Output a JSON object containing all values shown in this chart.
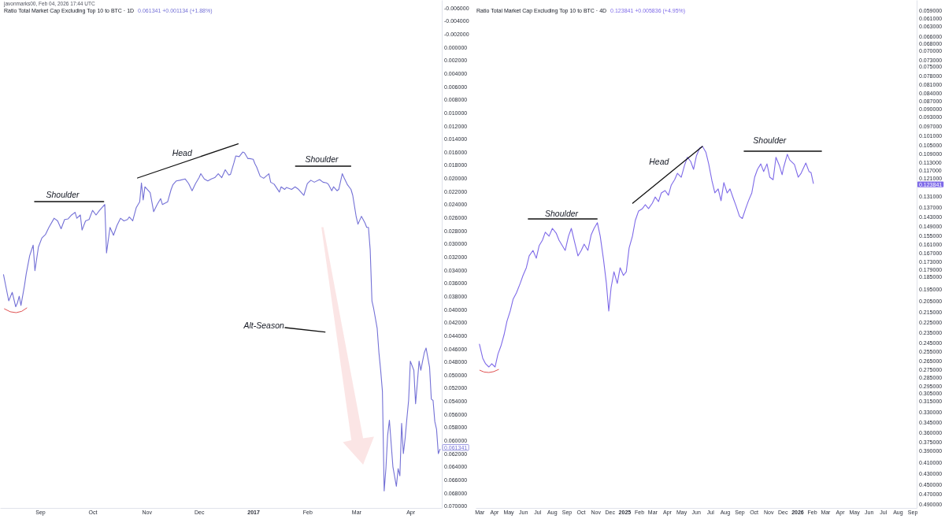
{
  "chart_data": [
    {
      "type": "line",
      "title": "Ratio Total Market Cap Excluding Top 10 to BTC · 1D",
      "subtitle": "0.061341 +0.001134 (+1.88%)",
      "annotations": [
        "javonmarks00, Feb 04, 2026 17:44 UTC",
        "Shoulder",
        "Head",
        "Shoulder",
        "Alt-Season",
        "0.061341"
      ],
      "x": [
        "2016-08-11",
        "2016-08-14",
        "2016-08-16",
        "2016-08-18",
        "2016-08-19",
        "2016-08-20",
        "2016-08-21",
        "2016-08-23",
        "2016-08-24",
        "2016-08-26",
        "2016-08-28",
        "2016-08-29",
        "2016-08-31",
        "2016-09-02",
        "2016-09-04",
        "2016-09-06",
        "2016-09-09",
        "2016-09-11",
        "2016-09-13",
        "2016-09-15",
        "2016-09-17",
        "2016-09-19",
        "2016-09-21",
        "2016-09-22",
        "2016-09-24",
        "2016-09-25",
        "2016-09-27",
        "2016-09-29",
        "2016-10-01",
        "2016-10-03",
        "2016-10-05",
        "2016-10-08",
        "2016-10-09",
        "2016-10-11",
        "2016-10-13",
        "2016-10-15",
        "2016-10-17",
        "2016-10-19",
        "2016-10-21",
        "2016-10-22",
        "2016-10-24",
        "2016-10-26",
        "2016-10-28",
        "2016-10-29",
        "2016-10-30",
        "2016-10-31",
        "2016-11-03",
        "2016-11-05",
        "2016-11-07",
        "2016-11-09",
        "2016-11-10",
        "2016-11-13",
        "2016-11-15",
        "2016-11-16",
        "2016-11-18",
        "2016-11-20",
        "2016-11-23",
        "2016-11-25",
        "2016-11-27",
        "2016-11-29",
        "2016-12-01",
        "2016-12-02",
        "2016-12-04",
        "2016-12-06",
        "2016-12-08",
        "2016-12-10",
        "2016-12-12",
        "2016-12-14",
        "2016-12-16",
        "2016-12-18",
        "2016-12-19",
        "2016-12-21",
        "2016-12-22",
        "2016-12-24",
        "2016-12-26",
        "2016-12-27",
        "2016-12-29",
        "2016-12-30",
        "2017-01-01",
        "2017-01-02",
        "2017-01-03",
        "2017-01-05",
        "2017-01-07",
        "2017-01-10",
        "2017-01-11",
        "2017-01-13",
        "2017-01-16",
        "2017-01-17",
        "2017-01-19",
        "2017-01-20",
        "2017-01-23",
        "2017-01-25",
        "2017-01-27",
        "2017-01-29",
        "2017-01-30",
        "2017-02-01",
        "2017-02-03",
        "2017-02-05",
        "2017-02-08",
        "2017-02-10",
        "2017-02-12",
        "2017-02-13",
        "2017-02-15",
        "2017-02-16",
        "2017-02-18",
        "2017-02-19",
        "2017-02-21",
        "2017-02-22",
        "2017-02-24",
        "2017-02-26",
        "2017-02-27",
        "2017-03-01",
        "2017-03-02",
        "2017-03-04",
        "2017-03-06",
        "2017-03-07",
        "2017-03-08",
        "2017-03-09",
        "2017-03-10",
        "2017-03-11",
        "2017-03-13",
        "2017-03-14",
        "2017-03-15",
        "2017-03-16",
        "2017-03-17",
        "2017-03-18",
        "2017-03-19",
        "2017-03-20",
        "2017-03-22",
        "2017-03-24",
        "2017-03-25",
        "2017-03-26",
        "2017-03-27",
        "2017-03-28",
        "2017-03-29",
        "2017-03-30",
        "2017-03-31",
        "2017-04-01",
        "2017-04-03",
        "2017-04-04",
        "2017-04-05",
        "2017-04-06",
        "2017-04-07",
        "2017-04-08",
        "2017-04-09",
        "2017-04-10",
        "2017-04-12",
        "2017-04-13",
        "2017-04-14",
        "2017-04-15",
        "2017-04-16",
        "2017-04-17",
        "2017-04-18"
      ],
      "series": [
        {
          "color": "#7471d6",
          "values": [
            0.0347,
            0.0387,
            0.0374,
            0.0396,
            0.039,
            0.038,
            0.0394,
            0.0364,
            0.0346,
            0.0318,
            0.0302,
            0.0341,
            0.0305,
            0.0291,
            0.0286,
            0.0275,
            0.0261,
            0.0265,
            0.0277,
            0.0263,
            0.0262,
            0.0256,
            0.0252,
            0.0261,
            0.0256,
            0.0279,
            0.0265,
            0.0263,
            0.0249,
            0.0256,
            0.0249,
            0.024,
            0.0314,
            0.0275,
            0.0287,
            0.0272,
            0.0261,
            0.0265,
            0.0263,
            0.0259,
            0.0265,
            0.0245,
            0.0236,
            0.0207,
            0.0233,
            0.0213,
            0.0222,
            0.0251,
            0.024,
            0.0231,
            0.024,
            0.0236,
            0.0217,
            0.021,
            0.0204,
            0.0203,
            0.0201,
            0.0208,
            0.0219,
            0.0208,
            0.0199,
            0.0193,
            0.0201,
            0.0204,
            0.0201,
            0.0199,
            0.0193,
            0.0199,
            0.0187,
            0.0195,
            0.0194,
            0.0176,
            0.0166,
            0.0167,
            0.016,
            0.0161,
            0.017,
            0.017,
            0.0171,
            0.0178,
            0.0183,
            0.0197,
            0.02,
            0.0193,
            0.0206,
            0.0209,
            0.0221,
            0.0213,
            0.0217,
            0.0214,
            0.0217,
            0.0213,
            0.0217,
            0.0223,
            0.0226,
            0.0208,
            0.0203,
            0.0206,
            0.0202,
            0.0206,
            0.0207,
            0.0209,
            0.0219,
            0.0213,
            0.0219,
            0.0217,
            0.0193,
            0.0199,
            0.021,
            0.0217,
            0.0226,
            0.0259,
            0.027,
            0.0258,
            0.0268,
            0.0275,
            0.0275,
            0.0309,
            0.0387,
            0.0399,
            0.0429,
            0.0466,
            0.0493,
            0.0525,
            0.0677,
            0.0643,
            0.0592,
            0.0569,
            0.064,
            0.067,
            0.0643,
            0.0654,
            0.0574,
            0.062,
            0.0597,
            0.0567,
            0.0539,
            0.0479,
            0.0493,
            0.0544,
            0.0512,
            0.0479,
            0.0493,
            0.0479,
            0.0466,
            0.0459,
            0.0488,
            0.0537,
            0.0539,
            0.0571,
            0.0583,
            0.062,
            0.061341
          ]
        }
      ],
      "xlim": [
        "2016-08-09",
        "2017-04-19"
      ],
      "xticks": [
        {
          "value": "2016-09-01",
          "label": "Sep"
        },
        {
          "value": "2016-10-01",
          "label": "Oct"
        },
        {
          "value": "2016-11-01",
          "label": "Nov"
        },
        {
          "value": "2016-12-01",
          "label": "Dec"
        },
        {
          "value": "2017-01-01",
          "label": "2017"
        },
        {
          "value": "2017-02-01",
          "label": "Feb"
        },
        {
          "value": "2017-03-01",
          "label": "Mar"
        },
        {
          "value": "2017-04-01",
          "label": "Apr"
        }
      ],
      "ylim": [
        0.0703,
        -0.0072
      ],
      "yticks": [
        {
          "value": -0.006,
          "label": "-0.006000"
        },
        {
          "value": -0.004,
          "label": "-0.004000"
        },
        {
          "value": -0.002,
          "label": "-0.002000"
        },
        {
          "value": 0,
          "label": "0.000000"
        },
        {
          "value": 0.002,
          "label": "0.002000"
        },
        {
          "value": 0.004,
          "label": "0.004000"
        },
        {
          "value": 0.006,
          "label": "0.006000"
        },
        {
          "value": 0.008,
          "label": "0.008000"
        },
        {
          "value": 0.01,
          "label": "0.010000"
        },
        {
          "value": 0.012,
          "label": "0.012000"
        },
        {
          "value": 0.014,
          "label": "0.014000"
        },
        {
          "value": 0.016,
          "label": "0.016000"
        },
        {
          "value": 0.018,
          "label": "0.018000"
        },
        {
          "value": 0.02,
          "label": "0.020000"
        },
        {
          "value": 0.022,
          "label": "0.022000"
        },
        {
          "value": 0.024,
          "label": "0.024000"
        },
        {
          "value": 0.026,
          "label": "0.026000"
        },
        {
          "value": 0.028,
          "label": "0.028000"
        },
        {
          "value": 0.03,
          "label": "0.030000"
        },
        {
          "value": 0.032,
          "label": "0.032000"
        },
        {
          "value": 0.034,
          "label": "0.034000"
        },
        {
          "value": 0.036,
          "label": "0.036000"
        },
        {
          "value": 0.038,
          "label": "0.038000"
        },
        {
          "value": 0.04,
          "label": "0.040000"
        },
        {
          "value": 0.042,
          "label": "0.042000"
        },
        {
          "value": 0.044,
          "label": "0.044000"
        },
        {
          "value": 0.046,
          "label": "0.046000"
        },
        {
          "value": 0.048,
          "label": "0.048000"
        },
        {
          "value": 0.05,
          "label": "0.050000"
        },
        {
          "value": 0.052,
          "label": "0.052000"
        },
        {
          "value": 0.054,
          "label": "0.054000"
        },
        {
          "value": 0.056,
          "label": "0.056000"
        },
        {
          "value": 0.058,
          "label": "0.058000"
        },
        {
          "value": 0.06,
          "label": "0.060000"
        },
        {
          "value": 0.062,
          "label": "0.062000"
        },
        {
          "value": 0.064,
          "label": "0.064000"
        },
        {
          "value": 0.066,
          "label": "0.066000"
        },
        {
          "value": 0.068,
          "label": "0.068000"
        },
        {
          "value": 0.07,
          "label": "0.070000"
        }
      ]
    },
    {
      "type": "line",
      "title": "Ratio Total Market Cap Excluding Top 10 to BTC · 4D",
      "subtitle": "0.123841 +0.005836 (+4.95%)",
      "log": true,
      "annotations": [
        "Shoulder",
        "Head",
        "Shoulder",
        "0.123841"
      ],
      "x": [
        "2024-03-01",
        "2024-03-08",
        "2024-03-14",
        "2024-03-21",
        "2024-03-27",
        "2024-04-03",
        "2024-04-09",
        "2024-04-16",
        "2024-04-22",
        "2024-04-28",
        "2024-05-05",
        "2024-05-11",
        "2024-05-18",
        "2024-05-26",
        "2024-06-01",
        "2024-06-08",
        "2024-06-14",
        "2024-06-22",
        "2024-06-29",
        "2024-07-05",
        "2024-07-12",
        "2024-07-18",
        "2024-07-26",
        "2024-08-02",
        "2024-08-10",
        "2024-08-16",
        "2024-08-23",
        "2024-08-29",
        "2024-09-05",
        "2024-09-11",
        "2024-09-19",
        "2024-09-25",
        "2024-10-02",
        "2024-10-08",
        "2024-10-16",
        "2024-10-23",
        "2024-10-29",
        "2024-11-05",
        "2024-11-11",
        "2024-11-18",
        "2024-11-24",
        "2024-11-29",
        "2024-12-04",
        "2024-12-10",
        "2024-12-17",
        "2024-12-23",
        "2024-12-30",
        "2025-01-05",
        "2025-01-11",
        "2025-01-18",
        "2025-01-24",
        "2025-01-31",
        "2025-02-08",
        "2025-02-14",
        "2025-02-21",
        "2025-03-01",
        "2025-03-07",
        "2025-03-14",
        "2025-03-20",
        "2025-03-28",
        "2025-04-04",
        "2025-04-10",
        "2025-04-17",
        "2025-04-23",
        "2025-05-01",
        "2025-05-08",
        "2025-05-14",
        "2025-05-21",
        "2025-05-27",
        "2025-06-02",
        "2025-06-09",
        "2025-06-15",
        "2025-06-22",
        "2025-06-28",
        "2025-07-05",
        "2025-07-11",
        "2025-07-18",
        "2025-07-24",
        "2025-07-30",
        "2025-08-06",
        "2025-08-12",
        "2025-08-19",
        "2025-08-25",
        "2025-09-01",
        "2025-09-07",
        "2025-09-14",
        "2025-09-20",
        "2025-09-27",
        "2025-10-03",
        "2025-10-09",
        "2025-10-16",
        "2025-10-22",
        "2025-10-29",
        "2025-11-04",
        "2025-11-11",
        "2025-11-17",
        "2025-11-24",
        "2025-11-30",
        "2025-12-03",
        "2025-12-11",
        "2025-12-16",
        "2025-12-26",
        "2026-01-03",
        "2026-01-09",
        "2026-01-19",
        "2026-01-26",
        "2026-01-30",
        "2026-02-04"
      ],
      "series": [
        {
          "color": "#7e6ae8",
          "values": [
            0.2469,
            0.2622,
            0.2685,
            0.2722,
            0.2685,
            0.2722,
            0.2578,
            0.2478,
            0.237,
            0.2238,
            0.2141,
            0.2036,
            0.1981,
            0.1902,
            0.1838,
            0.1778,
            0.169,
            0.1651,
            0.1707,
            0.1618,
            0.158,
            0.1527,
            0.1553,
            0.1502,
            0.1533,
            0.158,
            0.1618,
            0.1651,
            0.1553,
            0.1502,
            0.1607,
            0.169,
            0.1651,
            0.1607,
            0.1651,
            0.1543,
            0.1502,
            0.1466,
            0.1553,
            0.1719,
            0.1902,
            0.2141,
            0.1935,
            0.1809,
            0.1902,
            0.1778,
            0.1838,
            0.1809,
            0.1634,
            0.1553,
            0.1452,
            0.1394,
            0.138,
            0.1357,
            0.138,
            0.1348,
            0.1313,
            0.1339,
            0.129,
            0.1277,
            0.1303,
            0.1247,
            0.1219,
            0.1186,
            0.1206,
            0.1146,
            0.1107,
            0.1127,
            0.1166,
            0.1101,
            0.1064,
            0.1057,
            0.1083,
            0.1139,
            0.1226,
            0.129,
            0.1268,
            0.1334,
            0.1234,
            0.129,
            0.1268,
            0.1321,
            0.1366,
            0.1426,
            0.144,
            0.138,
            0.1334,
            0.129,
            0.1206,
            0.1166,
            0.1139,
            0.1177,
            0.1139,
            0.1206,
            0.1219,
            0.1107,
            0.1146,
            0.1193,
            0.1158,
            0.1093,
            0.112,
            0.1142,
            0.1206,
            0.1186,
            0.1135,
            0.1178,
            0.1182,
            0.123841
          ]
        }
      ],
      "xlim": [
        "2024-02-22",
        "2026-09-10"
      ],
      "xticks": [
        {
          "value": "2024-03-01",
          "label": "Mar"
        },
        {
          "value": "2024-04-01",
          "label": "Apr"
        },
        {
          "value": "2024-05-01",
          "label": "May"
        },
        {
          "value": "2024-06-01",
          "label": "Jun"
        },
        {
          "value": "2024-07-01",
          "label": "Jul"
        },
        {
          "value": "2024-08-01",
          "label": "Aug"
        },
        {
          "value": "2024-09-01",
          "label": "Sep"
        },
        {
          "value": "2024-10-01",
          "label": "Oct"
        },
        {
          "value": "2024-11-01",
          "label": "Nov"
        },
        {
          "value": "2024-12-01",
          "label": "Dec"
        },
        {
          "value": "2025-01-01",
          "label": "2025"
        },
        {
          "value": "2025-02-01",
          "label": "Feb"
        },
        {
          "value": "2025-03-01",
          "label": "Mar"
        },
        {
          "value": "2025-04-01",
          "label": "Apr"
        },
        {
          "value": "2025-05-01",
          "label": "May"
        },
        {
          "value": "2025-06-01",
          "label": "Jun"
        },
        {
          "value": "2025-07-01",
          "label": "Jul"
        },
        {
          "value": "2025-08-01",
          "label": "Aug"
        },
        {
          "value": "2025-09-01",
          "label": "Sep"
        },
        {
          "value": "2025-10-01",
          "label": "Oct"
        },
        {
          "value": "2025-11-01",
          "label": "Nov"
        },
        {
          "value": "2025-12-01",
          "label": "Dec"
        },
        {
          "value": "2026-01-01",
          "label": "2026"
        },
        {
          "value": "2026-02-01",
          "label": "Feb"
        },
        {
          "value": "2026-03-01",
          "label": "Mar"
        },
        {
          "value": "2026-04-01",
          "label": "Apr"
        },
        {
          "value": "2026-05-01",
          "label": "May"
        },
        {
          "value": "2026-06-01",
          "label": "Jun"
        },
        {
          "value": "2026-07-01",
          "label": "Jul"
        },
        {
          "value": "2026-08-01",
          "label": "Aug"
        },
        {
          "value": "2026-09-01",
          "label": "Sep"
        }
      ],
      "ylim": [
        0.4983,
        0.05639
      ],
      "yticks": [
        {
          "value": 0.059,
          "label": "0.059000"
        },
        {
          "value": 0.061,
          "label": "0.061000"
        },
        {
          "value": 0.063,
          "label": "0.063000"
        },
        {
          "value": 0.066,
          "label": "0.066000"
        },
        {
          "value": 0.068,
          "label": "0.068000"
        },
        {
          "value": 0.07,
          "label": "0.070000"
        },
        {
          "value": 0.073,
          "label": "0.073000"
        },
        {
          "value": 0.075,
          "label": "0.075000"
        },
        {
          "value": 0.078,
          "label": "0.078000"
        },
        {
          "value": 0.081,
          "label": "0.081000"
        },
        {
          "value": 0.084,
          "label": "0.084000"
        },
        {
          "value": 0.087,
          "label": "0.087000"
        },
        {
          "value": 0.09,
          "label": "0.090000"
        },
        {
          "value": 0.093,
          "label": "0.093000"
        },
        {
          "value": 0.097,
          "label": "0.097000"
        },
        {
          "value": 0.101,
          "label": "0.101000"
        },
        {
          "value": 0.105,
          "label": "0.105000"
        },
        {
          "value": 0.109,
          "label": "0.109000"
        },
        {
          "value": 0.113,
          "label": "0.113000"
        },
        {
          "value": 0.117,
          "label": "0.117000"
        },
        {
          "value": 0.121,
          "label": "0.121000"
        },
        {
          "value": 0.131,
          "label": "0.131000"
        },
        {
          "value": 0.137,
          "label": "0.137000"
        },
        {
          "value": 0.143,
          "label": "0.143000"
        },
        {
          "value": 0.149,
          "label": "0.149000"
        },
        {
          "value": 0.155,
          "label": "0.155000"
        },
        {
          "value": 0.161,
          "label": "0.161000"
        },
        {
          "value": 0.167,
          "label": "0.167000"
        },
        {
          "value": 0.173,
          "label": "0.173000"
        },
        {
          "value": 0.179,
          "label": "0.179000"
        },
        {
          "value": 0.185,
          "label": "0.185000"
        },
        {
          "value": 0.195,
          "label": "0.195000"
        },
        {
          "value": 0.205,
          "label": "0.205000"
        },
        {
          "value": 0.215,
          "label": "0.215000"
        },
        {
          "value": 0.225,
          "label": "0.225000"
        },
        {
          "value": 0.235,
          "label": "0.235000"
        },
        {
          "value": 0.245,
          "label": "0.245000"
        },
        {
          "value": 0.255,
          "label": "0.255000"
        },
        {
          "value": 0.265,
          "label": "0.265000"
        },
        {
          "value": 0.275,
          "label": "0.275000"
        },
        {
          "value": 0.285,
          "label": "0.285000"
        },
        {
          "value": 0.295,
          "label": "0.295000"
        },
        {
          "value": 0.305,
          "label": "0.305000"
        },
        {
          "value": 0.315,
          "label": "0.315000"
        },
        {
          "value": 0.33,
          "label": "0.330000"
        },
        {
          "value": 0.345,
          "label": "0.345000"
        },
        {
          "value": 0.36,
          "label": "0.360000"
        },
        {
          "value": 0.375,
          "label": "0.375000"
        },
        {
          "value": 0.39,
          "label": "0.390000"
        },
        {
          "value": 0.41,
          "label": "0.410000"
        },
        {
          "value": 0.43,
          "label": "0.430000"
        },
        {
          "value": 0.45,
          "label": "0.450000"
        },
        {
          "value": 0.47,
          "label": "0.470000"
        },
        {
          "value": 0.49,
          "label": "0.490000"
        }
      ]
    }
  ]
}
